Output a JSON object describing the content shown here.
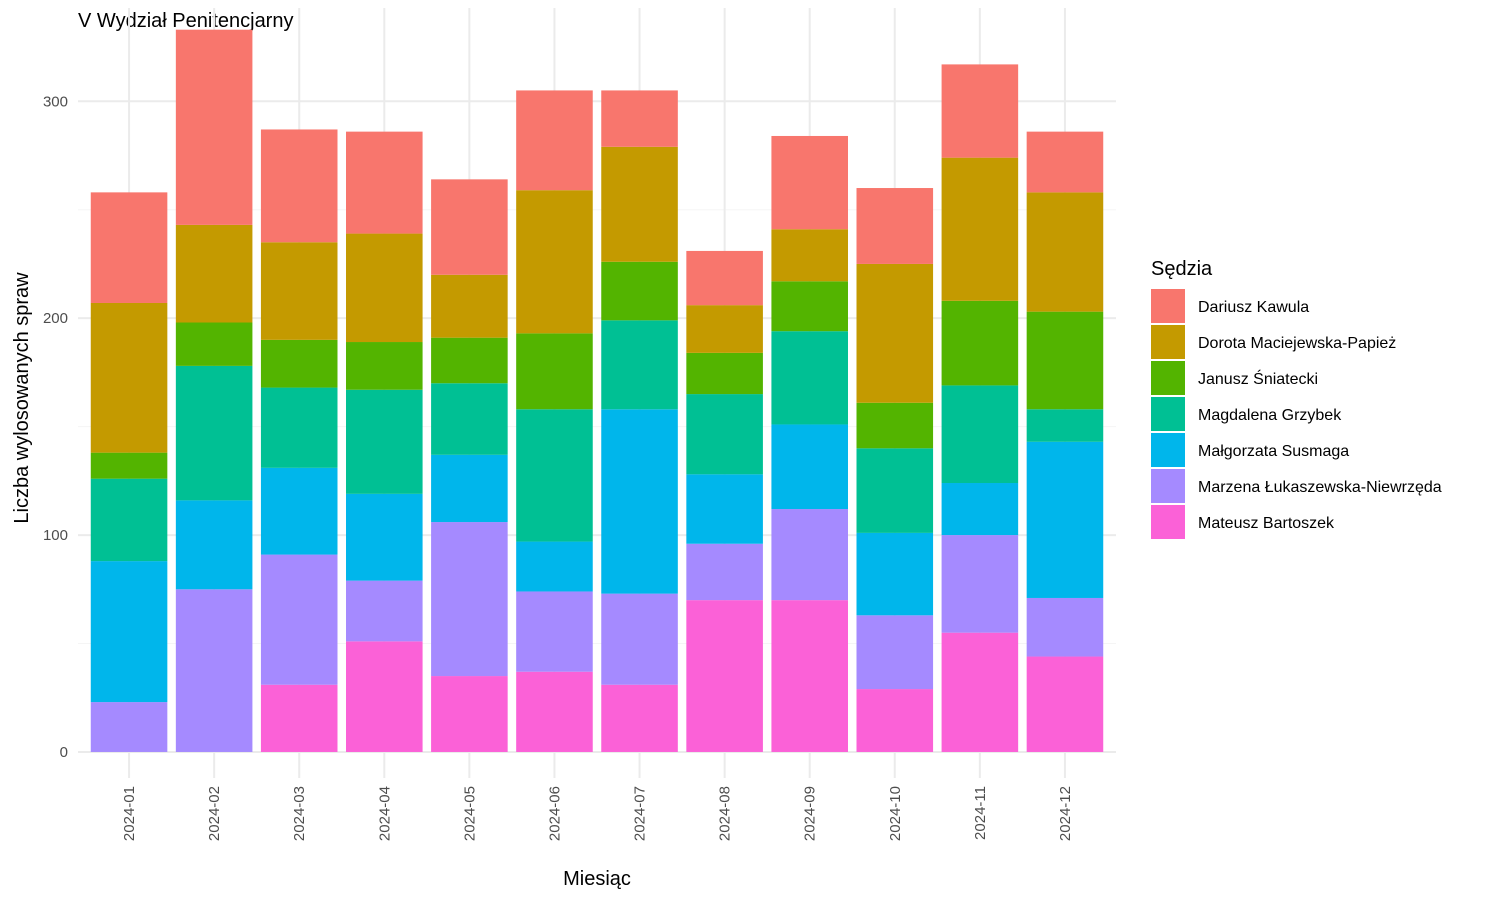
{
  "chart_data": {
    "type": "bar",
    "stacked": true,
    "title": "V Wydział Penitencjarny",
    "xlabel": "Miesiąc",
    "ylabel": "Liczba wylosowanych spraw",
    "ylim": [
      -12,
      343
    ],
    "yticks": [
      0,
      100,
      200,
      300
    ],
    "grid": true,
    "legend_title": "Sędzia",
    "legend_position": "right",
    "categories": [
      "2024-01",
      "2024-02",
      "2024-03",
      "2024-04",
      "2024-05",
      "2024-06",
      "2024-07",
      "2024-08",
      "2024-09",
      "2024-10",
      "2024-11",
      "2024-12"
    ],
    "series": [
      {
        "name": "Dariusz Kawula",
        "color": "#F8766D",
        "values": [
          51,
          90,
          52,
          47,
          44,
          46,
          26,
          25,
          43,
          35,
          43,
          28
        ]
      },
      {
        "name": "Dorota Maciejewska-Papież",
        "color": "#C49A00",
        "values": [
          69,
          45,
          45,
          50,
          29,
          66,
          53,
          22,
          24,
          64,
          66,
          55
        ]
      },
      {
        "name": "Janusz Śniatecki",
        "color": "#53B400",
        "values": [
          12,
          20,
          22,
          22,
          21,
          35,
          27,
          19,
          23,
          21,
          39,
          45
        ]
      },
      {
        "name": "Magdalena Grzybek",
        "color": "#00C094",
        "values": [
          38,
          62,
          37,
          48,
          33,
          61,
          41,
          37,
          43,
          39,
          45,
          15
        ]
      },
      {
        "name": "Małgorzata Susmaga",
        "color": "#00B6EB",
        "values": [
          65,
          41,
          40,
          40,
          31,
          23,
          85,
          32,
          39,
          38,
          24,
          72
        ]
      },
      {
        "name": "Marzena Łukaszewska-Niewrzęda",
        "color": "#A58AFF",
        "values": [
          23,
          75,
          60,
          28,
          71,
          37,
          42,
          26,
          42,
          34,
          45,
          27
        ]
      },
      {
        "name": "Mateusz Bartoszek",
        "color": "#FB61D7",
        "values": [
          0,
          0,
          31,
          51,
          35,
          37,
          31,
          70,
          70,
          29,
          55,
          44
        ]
      }
    ]
  }
}
